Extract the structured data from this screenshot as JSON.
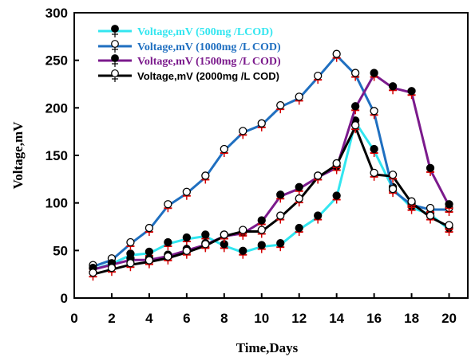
{
  "chart_data": {
    "type": "line",
    "title": "",
    "xlabel": "Time,Days",
    "ylabel": "Voltage,mV",
    "xlim": [
      0,
      21
    ],
    "ylim": [
      0,
      300
    ],
    "xticks": [
      0,
      2,
      4,
      6,
      8,
      10,
      12,
      14,
      16,
      18,
      20
    ],
    "yticks": [
      0,
      50,
      100,
      150,
      200,
      250,
      300
    ],
    "grid": false,
    "legend_position": "top-left",
    "x": [
      1,
      2,
      3,
      4,
      5,
      6,
      7,
      8,
      9,
      10,
      11,
      12,
      13,
      14,
      15,
      16,
      17,
      18,
      19,
      20
    ],
    "series": [
      {
        "name": "Voltage,mV (500mg /LCOD)",
        "color": "#33e6f0",
        "marker": "filled-black",
        "values": [
          30,
          36,
          45,
          47,
          57,
          62,
          65,
          55,
          48,
          54,
          56,
          72,
          85,
          106,
          185,
          155,
          115,
          95,
          88,
          72
        ]
      },
      {
        "name": "Voltage,mV (1000mg /L COD)",
        "color": "#1f6fc0",
        "marker": "open-white",
        "values": [
          33,
          40,
          57,
          72,
          97,
          110,
          127,
          155,
          174,
          182,
          201,
          210,
          232,
          255,
          235,
          195,
          113,
          98,
          93,
          93
        ]
      },
      {
        "name": "Voltage,mV (1500mg /L COD)",
        "color": "#7b1a8c",
        "marker": "filled-black",
        "values": [
          30,
          35,
          40,
          40,
          44,
          50,
          56,
          65,
          68,
          80,
          107,
          115,
          127,
          137,
          200,
          235,
          221,
          216,
          135,
          97
        ]
      },
      {
        "name": "Voltage,mV (2000mg /L COD)",
        "color": "#000000",
        "marker": "open-white",
        "values": [
          25,
          30,
          35,
          38,
          42,
          48,
          55,
          65,
          70,
          70,
          85,
          103,
          127,
          140,
          180,
          130,
          128,
          100,
          85,
          75
        ]
      }
    ]
  }
}
